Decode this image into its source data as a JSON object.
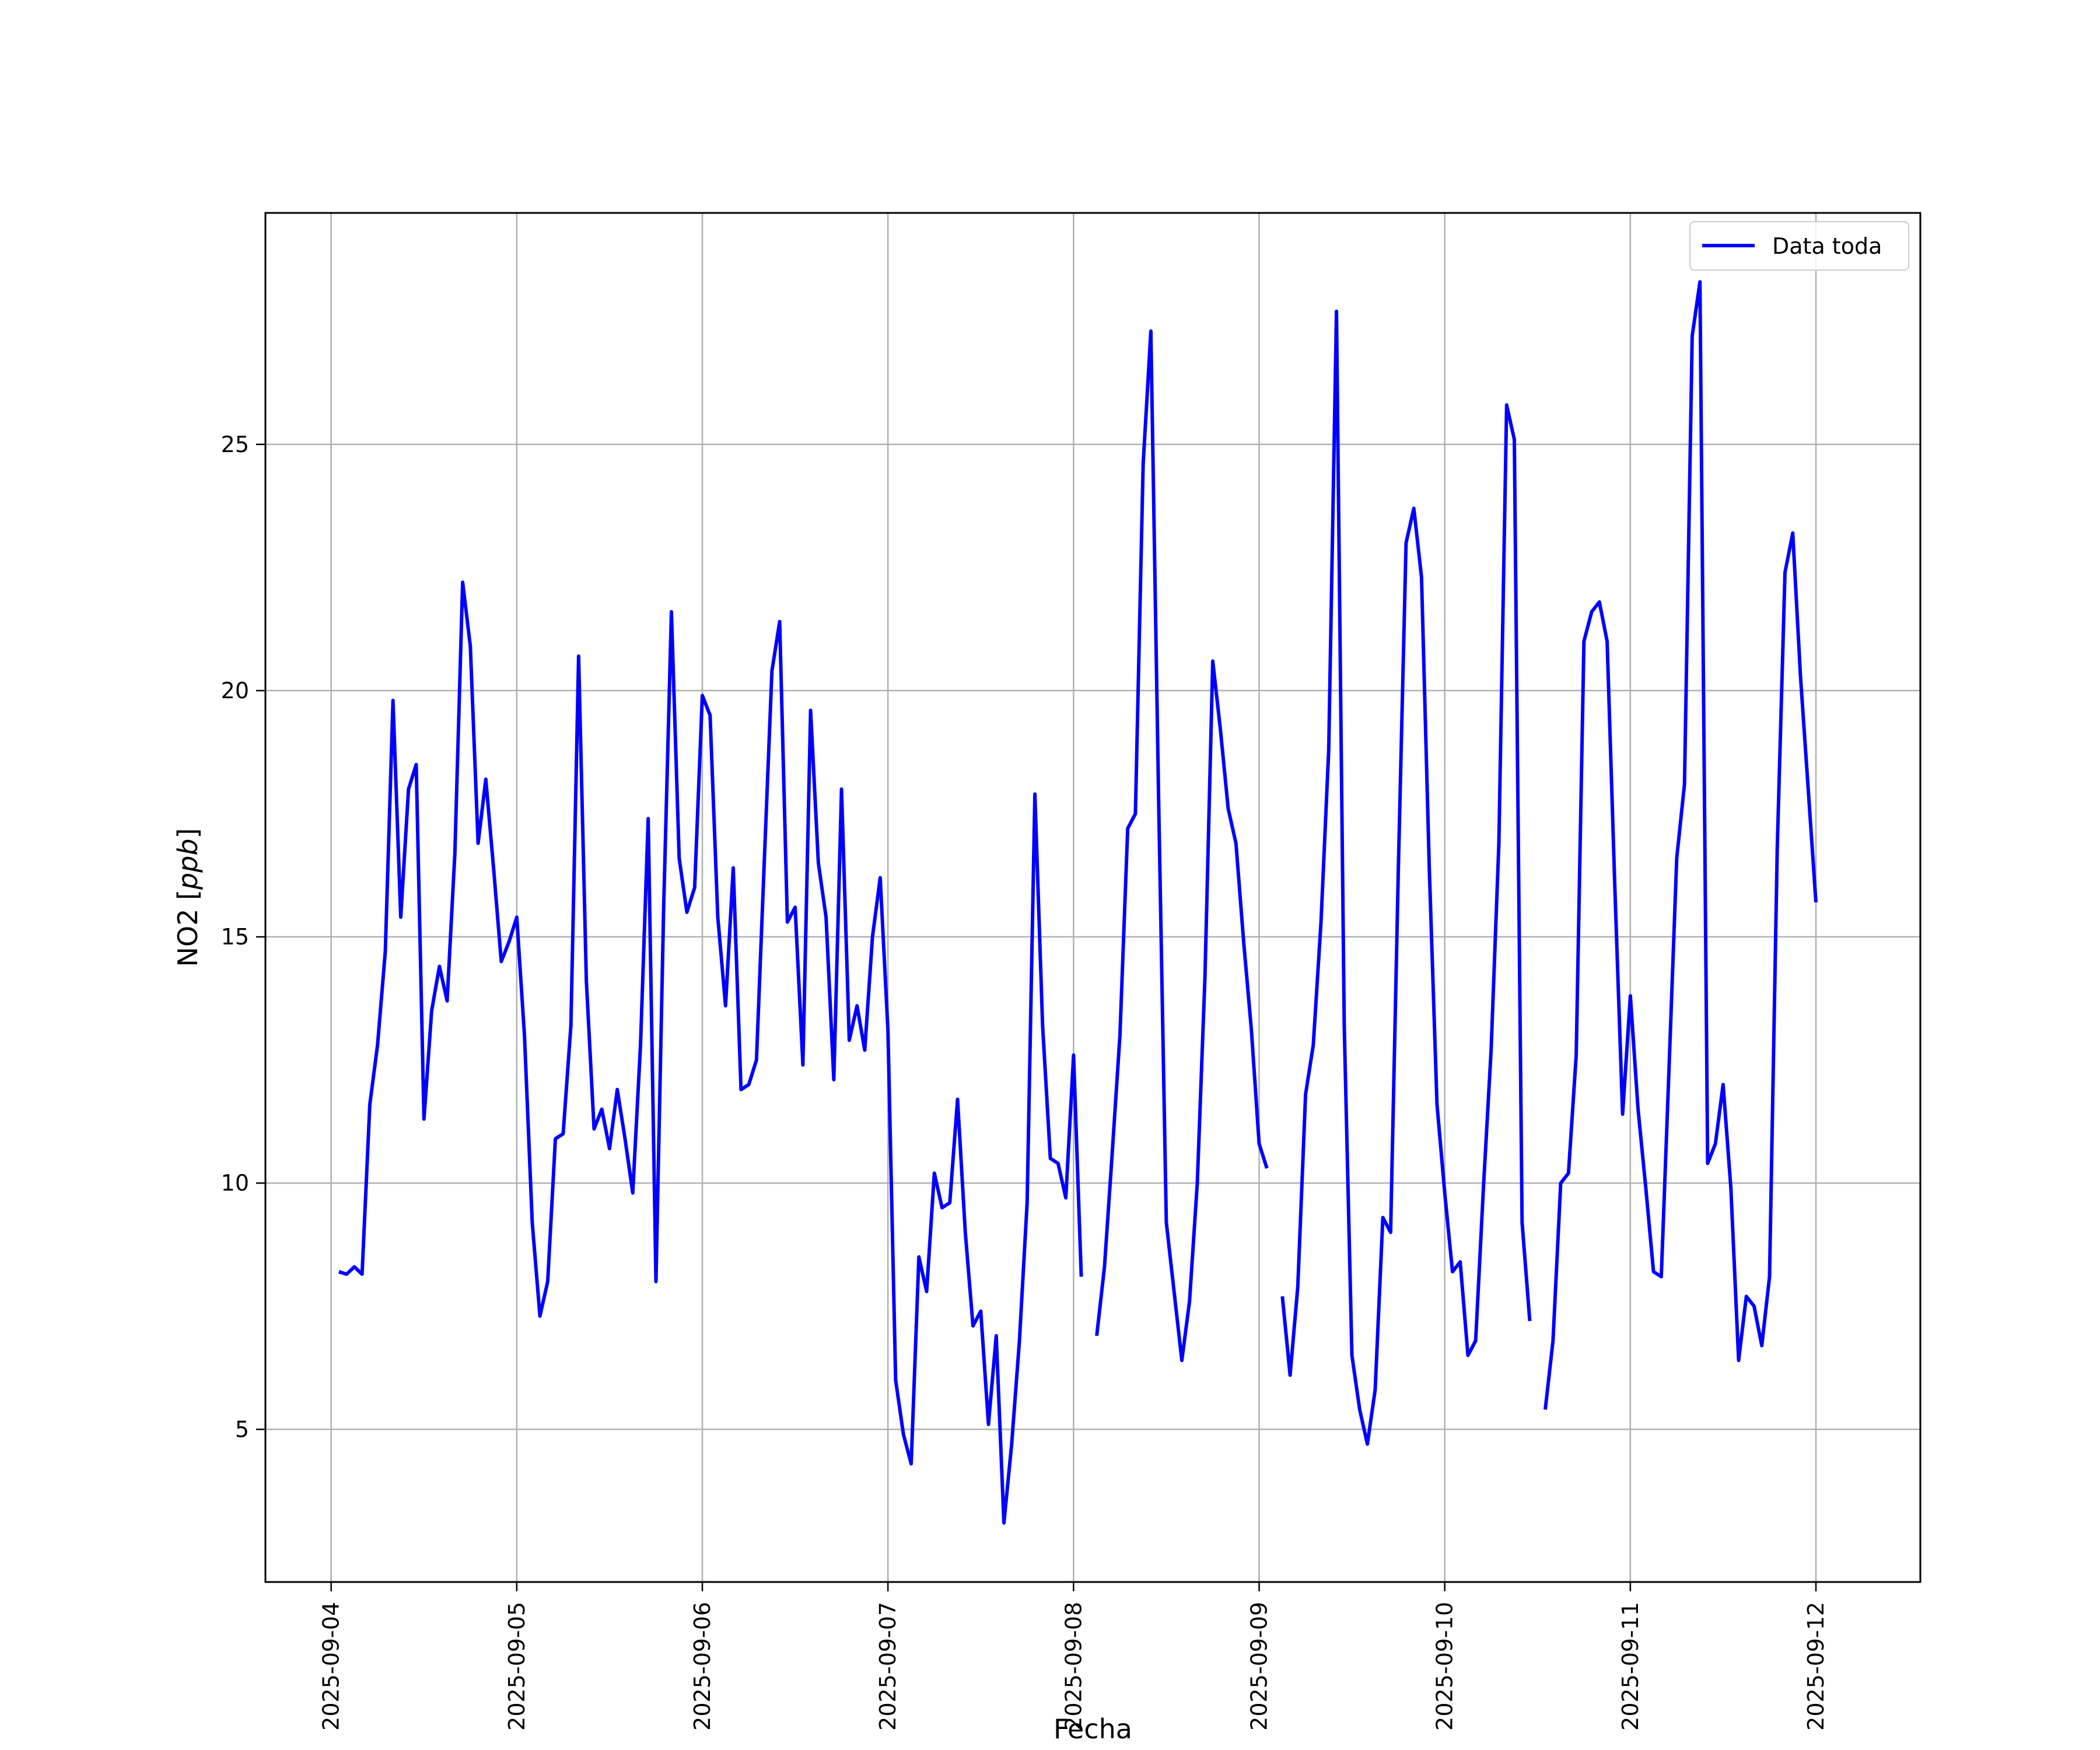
{
  "chart_data": {
    "type": "line",
    "title": "",
    "xlabel": "Fecha",
    "ylabel": "NO2 [ppb]",
    "x_tick_labels": [
      "2025-09-04",
      "2025-09-05",
      "2025-09-06",
      "2025-09-07",
      "2025-09-08",
      "2025-09-09",
      "2025-09-10",
      "2025-09-11",
      "2025-09-12"
    ],
    "y_ticks": [
      5,
      10,
      15,
      20,
      25
    ],
    "xlim": [
      "2025-09-03T15:30",
      "2025-09-12T13:30"
    ],
    "ylim": [
      1.9,
      29.7
    ],
    "grid": true,
    "legend_position": "upper right",
    "colors": {
      "series": "#0000ff",
      "grid": "#b0b0b0"
    },
    "series": [
      {
        "name": "Data toda",
        "x": [
          "2025-09-04T01:00",
          "2025-09-04T02:00",
          "2025-09-04T03:00",
          "2025-09-04T04:00",
          "2025-09-04T05:00",
          "2025-09-04T06:00",
          "2025-09-04T07:00",
          "2025-09-04T08:00",
          "2025-09-04T09:00",
          "2025-09-04T10:00",
          "2025-09-04T11:00",
          "2025-09-04T12:00",
          "2025-09-04T13:00",
          "2025-09-04T14:00",
          "2025-09-04T15:00",
          "2025-09-04T16:00",
          "2025-09-04T17:00",
          "2025-09-04T18:00",
          "2025-09-04T19:00",
          "2025-09-04T20:00",
          "2025-09-04T21:00",
          "2025-09-04T22:00",
          "2025-09-04T23:00",
          "2025-09-05T00:00",
          "2025-09-05T01:00",
          "2025-09-05T02:00",
          "2025-09-05T03:00",
          "2025-09-05T04:00",
          "2025-09-05T05:00",
          "2025-09-05T06:00",
          "2025-09-05T07:00",
          "2025-09-05T08:00",
          "2025-09-05T09:00",
          "2025-09-05T10:00",
          "2025-09-05T11:00",
          "2025-09-05T12:00",
          "2025-09-05T13:00",
          "2025-09-05T14:00",
          "2025-09-05T15:00",
          "2025-09-05T16:00",
          "2025-09-05T17:00",
          "2025-09-05T18:00",
          "2025-09-05T19:00",
          "2025-09-05T20:00",
          "2025-09-05T21:00",
          "2025-09-05T22:00",
          "2025-09-05T23:00",
          "2025-09-06T00:00",
          "2025-09-06T01:00",
          "2025-09-06T02:00",
          "2025-09-06T03:00",
          "2025-09-06T04:00",
          "2025-09-06T05:00",
          "2025-09-06T06:00",
          "2025-09-06T07:00",
          "2025-09-06T08:00",
          "2025-09-06T09:00",
          "2025-09-06T10:00",
          "2025-09-06T11:00",
          "2025-09-06T12:00",
          "2025-09-06T13:00",
          "2025-09-06T14:00",
          "2025-09-06T15:00",
          "2025-09-06T16:00",
          "2025-09-06T17:00",
          "2025-09-06T18:00",
          "2025-09-06T19:00",
          "2025-09-06T20:00",
          "2025-09-06T21:00",
          "2025-09-06T22:00",
          "2025-09-06T23:00",
          "2025-09-07T00:00",
          "2025-09-07T01:00",
          "2025-09-07T02:00",
          "2025-09-07T03:00",
          "2025-09-07T04:00",
          "2025-09-07T05:00",
          "2025-09-07T06:00",
          "2025-09-07T07:00",
          "2025-09-07T08:00",
          "2025-09-07T09:00",
          "2025-09-07T10:00",
          "2025-09-07T11:00",
          "2025-09-07T12:00",
          "2025-09-07T13:00",
          "2025-09-07T14:00",
          "2025-09-07T15:00",
          "2025-09-07T16:00",
          "2025-09-07T17:00",
          "2025-09-07T18:00",
          "2025-09-07T19:00",
          "2025-09-07T20:00",
          "2025-09-07T21:00",
          "2025-09-07T22:00",
          "2025-09-07T23:00",
          "2025-09-08T00:00",
          "2025-09-08T01:00",
          null,
          "2025-09-08T03:00",
          "2025-09-08T04:00",
          "2025-09-08T05:00",
          "2025-09-08T06:00",
          "2025-09-08T07:00",
          "2025-09-08T08:00",
          "2025-09-08T09:00",
          "2025-09-08T10:00",
          "2025-09-08T11:00",
          "2025-09-08T12:00",
          "2025-09-08T13:00",
          "2025-09-08T14:00",
          "2025-09-08T15:00",
          "2025-09-08T16:00",
          "2025-09-08T17:00",
          "2025-09-08T18:00",
          "2025-09-08T19:00",
          "2025-09-08T20:00",
          "2025-09-08T21:00",
          "2025-09-08T22:00",
          "2025-09-08T23:00",
          "2025-09-09T00:00",
          "2025-09-09T01:00",
          null,
          "2025-09-09T03:00",
          "2025-09-09T04:00",
          "2025-09-09T05:00",
          "2025-09-09T06:00",
          "2025-09-09T07:00",
          "2025-09-09T08:00",
          "2025-09-09T09:00",
          "2025-09-09T10:00",
          "2025-09-09T11:00",
          "2025-09-09T12:00",
          "2025-09-09T13:00",
          "2025-09-09T14:00",
          "2025-09-09T15:00",
          "2025-09-09T16:00",
          "2025-09-09T17:00",
          "2025-09-09T18:00",
          "2025-09-09T19:00",
          "2025-09-09T20:00",
          "2025-09-09T21:00",
          "2025-09-09T22:00",
          "2025-09-09T23:00",
          "2025-09-10T00:00",
          "2025-09-10T01:00",
          "2025-09-10T02:00",
          "2025-09-10T03:00",
          "2025-09-10T04:00",
          "2025-09-10T05:00",
          "2025-09-10T06:00",
          "2025-09-10T07:00",
          "2025-09-10T08:00",
          "2025-09-10T09:00",
          "2025-09-10T10:00",
          "2025-09-10T11:00",
          null,
          "2025-09-10T13:00",
          "2025-09-10T14:00",
          "2025-09-10T15:00",
          "2025-09-10T16:00",
          "2025-09-10T17:00",
          "2025-09-10T18:00",
          "2025-09-10T19:00",
          "2025-09-10T20:00",
          "2025-09-10T21:00",
          "2025-09-10T22:00",
          "2025-09-10T23:00",
          "2025-09-11T00:00",
          "2025-09-11T01:00",
          "2025-09-11T02:00",
          "2025-09-11T03:00",
          "2025-09-11T04:00",
          "2025-09-11T05:00",
          "2025-09-11T06:00",
          "2025-09-11T07:00",
          "2025-09-11T08:00",
          "2025-09-11T09:00",
          "2025-09-11T10:00",
          "2025-09-11T11:00",
          "2025-09-11T12:00",
          "2025-09-11T13:00",
          "2025-09-11T14:00",
          "2025-09-11T15:00",
          "2025-09-11T16:00",
          "2025-09-11T17:00",
          "2025-09-11T18:00",
          "2025-09-11T19:00",
          "2025-09-11T20:00",
          "2025-09-11T21:00",
          "2025-09-11T22:00",
          "2025-09-11T23:00",
          "2025-09-12T00:00"
        ],
        "y": [
          8.2,
          8.15,
          8.3,
          8.15,
          11.6,
          12.8,
          14.7,
          19.8,
          15.4,
          18.0,
          18.5,
          11.3,
          13.5,
          14.4,
          13.7,
          16.7,
          22.2,
          20.9,
          16.9,
          18.2,
          16.4,
          14.5,
          14.9,
          15.4,
          13.0,
          9.2,
          7.3,
          8.0,
          10.9,
          11.0,
          13.2,
          20.7,
          14.1,
          11.1,
          11.5,
          10.7,
          11.9,
          10.9,
          9.8,
          12.8,
          17.4,
          8.0,
          15.6,
          21.6,
          16.6,
          15.5,
          16.0,
          19.9,
          19.5,
          15.4,
          13.6,
          16.4,
          11.9,
          12.0,
          12.5,
          16.5,
          20.4,
          21.4,
          15.3,
          15.6,
          12.4,
          19.6,
          16.5,
          15.4,
          12.1,
          18.0,
          12.9,
          13.6,
          12.7,
          15.0,
          16.2,
          13.1,
          6.0,
          4.9,
          4.3,
          8.5,
          7.8,
          10.2,
          9.5,
          9.6,
          11.7,
          9.0,
          7.1,
          7.4,
          5.1,
          6.9,
          3.1,
          4.7,
          6.8,
          9.6,
          17.9,
          13.2,
          10.5,
          10.4,
          9.7,
          12.6,
          8.1,
          null,
          6.9,
          8.3,
          10.6,
          13.0,
          17.2,
          17.5,
          24.6,
          27.3,
          17.8,
          9.2,
          7.8,
          6.4,
          7.6,
          10.0,
          14.2,
          20.6,
          19.2,
          17.6,
          16.9,
          14.9,
          13.1,
          10.8,
          10.3,
          null,
          7.7,
          6.1,
          7.9,
          11.8,
          12.8,
          15.3,
          18.8,
          27.7,
          13.2,
          6.5,
          5.4,
          4.7,
          5.8,
          9.3,
          9.0,
          16.4,
          23.0,
          23.7,
          22.3,
          16.4,
          11.6,
          9.8,
          8.2,
          8.4,
          6.5,
          6.8,
          9.9,
          12.7,
          16.9,
          25.8,
          25.1,
          9.2,
          7.2,
          null,
          5.4,
          6.8,
          10.0,
          10.2,
          12.6,
          21.0,
          21.6,
          21.8,
          21.0,
          16.0,
          11.4,
          13.8,
          11.5,
          9.9,
          8.2,
          8.1,
          12.3,
          16.6,
          18.1,
          27.2,
          28.3,
          10.4,
          10.8,
          12.0,
          9.9,
          6.4,
          7.7,
          7.5,
          6.7,
          8.1,
          16.8,
          22.4,
          23.2,
          20.3,
          18.0,
          15.7
        ]
      }
    ]
  }
}
